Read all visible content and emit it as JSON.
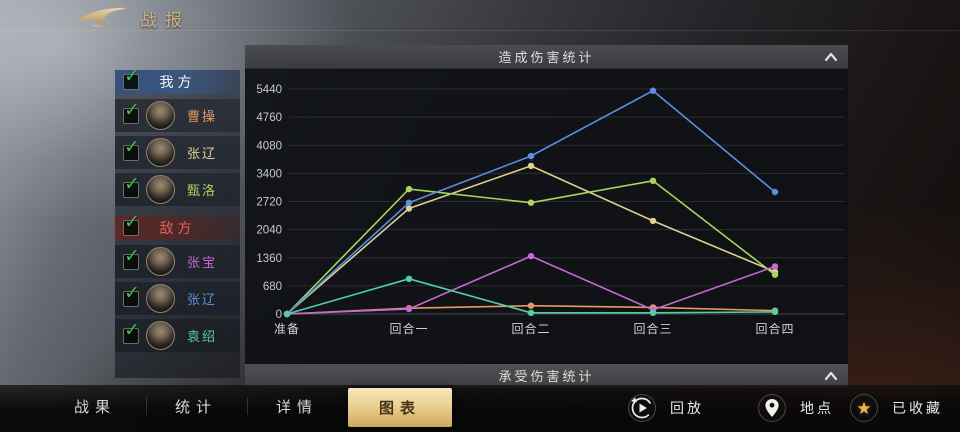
{
  "header": {
    "title": "战报"
  },
  "panels": {
    "damage_dealt_title": "造成伤害统计",
    "damage_taken_title": "承受伤害统计"
  },
  "sidebar": {
    "groups": [
      {
        "label": "我方",
        "type": "ally",
        "checked": true,
        "members": [
          {
            "name": "曹操",
            "color": "#e39a62",
            "checked": true
          },
          {
            "name": "张辽",
            "color": "#ddd092",
            "checked": true
          },
          {
            "name": "甄洛",
            "color": "#a8d45f",
            "checked": true
          }
        ]
      },
      {
        "label": "敌方",
        "type": "enemy",
        "checked": true,
        "members": [
          {
            "name": "张宝",
            "color": "#c468d4",
            "checked": true
          },
          {
            "name": "张辽",
            "color": "#5c8ede",
            "checked": true
          },
          {
            "name": "袁绍",
            "color": "#52d0a2",
            "checked": true
          }
        ]
      }
    ]
  },
  "chart_data": {
    "type": "line",
    "title": "造成伤害统计",
    "categories": [
      "准备",
      "回合一",
      "回合二",
      "回合三",
      "回合四"
    ],
    "y_ticks": [
      0,
      680,
      1360,
      2040,
      2720,
      3400,
      4080,
      4760,
      5440
    ],
    "ylim": [
      0,
      5440
    ],
    "grid": true,
    "legend_position": "left-sidebar",
    "series": [
      {
        "name": "曹操",
        "side": "我方",
        "color": "#e39a62",
        "values": [
          0,
          140,
          200,
          160,
          80
        ]
      },
      {
        "name": "张辽",
        "side": "我方",
        "color": "#ddd092",
        "values": [
          0,
          2550,
          3580,
          2250,
          1020
        ]
      },
      {
        "name": "甄洛",
        "side": "我方",
        "color": "#a8d45f",
        "values": [
          0,
          3020,
          2690,
          3220,
          950
        ]
      },
      {
        "name": "张宝",
        "side": "敌方",
        "color": "#c468d4",
        "values": [
          0,
          120,
          1400,
          100,
          1150
        ]
      },
      {
        "name": "张辽",
        "side": "敌方",
        "color": "#5c8ede",
        "values": [
          0,
          2690,
          3820,
          5400,
          2950
        ]
      },
      {
        "name": "袁绍",
        "side": "敌方",
        "color": "#52d0a2",
        "values": [
          0,
          850,
          30,
          30,
          50
        ]
      }
    ]
  },
  "tabs": [
    {
      "label": "战果",
      "active": false
    },
    {
      "label": "统计",
      "active": false
    },
    {
      "label": "详情",
      "active": false
    },
    {
      "label": "图表",
      "active": true
    }
  ],
  "actions": [
    {
      "label": "回放",
      "icon": "replay-icon"
    },
    {
      "label": "地点",
      "icon": "location-pin-icon"
    },
    {
      "label": "已收藏",
      "icon": "star-icon",
      "star_glyph": "★"
    }
  ],
  "colors": {
    "gold_accent": "#cdb083",
    "active_tab_gold": "#e9d192",
    "check_green": "#3fbf47",
    "ally_header_blue": "#34527e",
    "enemy_header_red": "#5e2824",
    "enemy_text_red": "#dd6353",
    "panel_bg": "#0f1115",
    "grid_line": "#3e4146"
  }
}
